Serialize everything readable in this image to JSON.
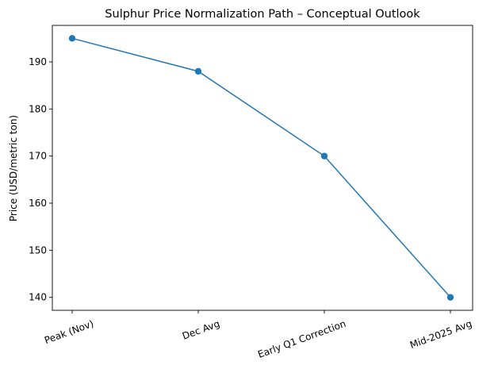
{
  "chart_data": {
    "type": "line",
    "title": "Sulphur Price Normalization Path – Conceptual Outlook",
    "xlabel": "",
    "ylabel": "Price (USD/metric ton)",
    "categories": [
      "Peak (Nov)",
      "Dec Avg",
      "Early Q1 Correction",
      "Mid-2025 Avg"
    ],
    "series": [
      {
        "name": "Price",
        "values": [
          195,
          188,
          170,
          140
        ],
        "color": "#1f77b4",
        "marker": "circle"
      }
    ],
    "yticks": [
      140,
      150,
      160,
      170,
      180,
      190
    ],
    "ylim": [
      137.25,
      197.75
    ],
    "grid": false,
    "legend": null
  }
}
